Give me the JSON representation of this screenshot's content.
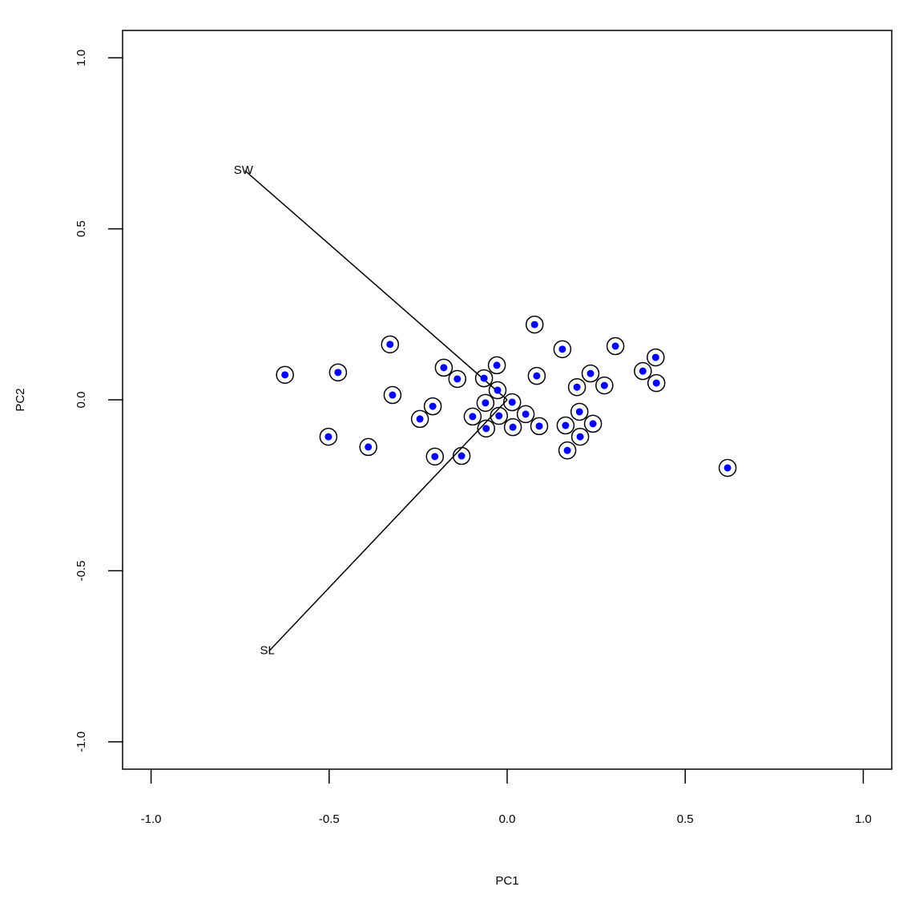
{
  "chart_data": {
    "type": "scatter",
    "xlabel": "PC1",
    "ylabel": "PC2",
    "xlim": [
      -1.08,
      1.08
    ],
    "ylim": [
      -1.08,
      1.08
    ],
    "xticks": [
      {
        "value": -1,
        "label": "-1.0"
      },
      {
        "value": -0.5,
        "label": "-0.5"
      },
      {
        "value": 0,
        "label": "0.0"
      },
      {
        "value": 0.5,
        "label": "0.5"
      },
      {
        "value": 1,
        "label": "1.0"
      }
    ],
    "yticks": [
      {
        "value": -1,
        "label": "-1.0"
      },
      {
        "value": -0.5,
        "label": "-0.5"
      },
      {
        "value": 0,
        "label": "0.0"
      },
      {
        "value": 0.5,
        "label": "0.5"
      },
      {
        "value": 1,
        "label": "1.0"
      }
    ],
    "color": "#0000ff",
    "ring_color": "#000000",
    "x": [
      -0.624,
      -0.475,
      -0.329,
      -0.322,
      -0.502,
      -0.39,
      -0.178,
      -0.14,
      -0.209,
      -0.245,
      -0.203,
      -0.128,
      -0.097,
      -0.065,
      -0.029,
      -0.027,
      -0.061,
      -0.059,
      -0.023,
      0.014,
      0.016,
      0.052,
      0.09,
      0.077,
      0.083,
      0.155,
      0.164,
      0.169,
      0.196,
      0.203,
      0.205,
      0.234,
      0.241,
      0.273,
      0.304,
      0.381,
      0.417,
      0.419,
      0.619
    ],
    "values": [
      0.073,
      0.08,
      0.162,
      0.014,
      -0.108,
      -0.138,
      0.094,
      0.061,
      -0.019,
      -0.056,
      -0.166,
      -0.164,
      -0.049,
      0.063,
      0.101,
      0.028,
      -0.009,
      -0.084,
      -0.047,
      -0.007,
      -0.08,
      -0.042,
      -0.077,
      0.22,
      0.07,
      0.148,
      -0.075,
      -0.148,
      0.037,
      -0.035,
      -0.108,
      0.077,
      -0.07,
      0.042,
      0.157,
      0.084,
      0.124,
      0.049,
      -0.199
    ],
    "arrows": [
      {
        "name": "SW",
        "x": -0.736,
        "y": 0.67
      },
      {
        "name": "SL",
        "x": -0.669,
        "y": -0.735
      }
    ]
  }
}
